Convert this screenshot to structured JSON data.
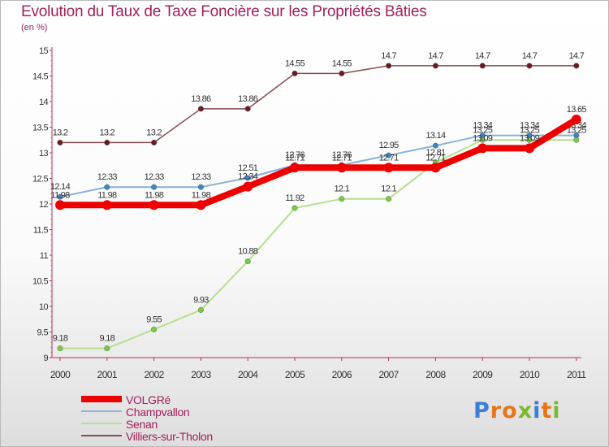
{
  "header": {
    "title": "Evolution du Taux de Taxe Foncière sur les Propriétés Bâties",
    "unit": "(en %)"
  },
  "logo": {
    "letters": [
      "P",
      "r",
      "o",
      "x",
      "i",
      "t",
      "i"
    ],
    "colors": [
      "#3a7fd5",
      "#e8751a",
      "#e8751a",
      "#7cb82f",
      "#3a7fd5",
      "#e8751a",
      "#7cb82f"
    ]
  },
  "chart_data": {
    "type": "line",
    "title": "Evolution du Taux de Taxe Foncière sur les Propriétés Bâties",
    "ylabel": "(en %)",
    "xlabel": "",
    "ylim": [
      9,
      15
    ],
    "yticks": [
      "9",
      "9.5",
      "10",
      "10.5",
      "11",
      "11.5",
      "12",
      "12.5",
      "13",
      "13.5",
      "14",
      "14.5",
      "15"
    ],
    "x": [
      "2000",
      "2001",
      "2002",
      "2003",
      "2004",
      "2005",
      "2006",
      "2007",
      "2008",
      "2009",
      "2010",
      "2011"
    ],
    "grid": false,
    "legend_position": "bottom-left",
    "series": [
      {
        "name": "Villiers-sur-Tholon",
        "color": "#6b1a22",
        "stroke": "#8a4a50",
        "width": 1.5,
        "values": [
          13.2,
          13.2,
          13.2,
          13.86,
          13.86,
          14.55,
          14.55,
          14.7,
          14.7,
          14.7,
          14.7,
          14.7
        ],
        "labels": [
          "13.2",
          "13.2",
          "13.2",
          "13.86",
          "13.86",
          "14.55",
          "14.55",
          "14.7",
          "14.7",
          "14.7",
          "14.7",
          "14.7"
        ]
      },
      {
        "name": "Senan",
        "color": "#7ac943",
        "stroke": "#b5e08e",
        "width": 2,
        "values": [
          9.18,
          9.18,
          9.55,
          9.93,
          10.88,
          11.92,
          12.1,
          12.1,
          12.81,
          13.25,
          13.25,
          13.25
        ],
        "labels": [
          "9.18",
          "9.18",
          "9.55",
          "9.93",
          "10.88",
          "11.92",
          "12.1",
          "12.1",
          "12.81",
          "13.25",
          "13.25",
          "13.25"
        ]
      },
      {
        "name": "Champvallon",
        "color": "#3d86c6",
        "stroke": "#86b3da",
        "width": 2,
        "values": [
          12.14,
          12.33,
          12.33,
          12.33,
          12.51,
          12.76,
          12.76,
          12.95,
          13.14,
          13.34,
          13.34,
          13.34
        ],
        "labels": [
          "12.14",
          "12.33",
          "12.33",
          "12.33",
          "12.51",
          "12.76",
          "12.76",
          "12.95",
          "13.14",
          "13.34",
          "13.34",
          "13.34"
        ]
      },
      {
        "name": "VOLGRé",
        "color": "#ee0000",
        "stroke": "#ee0000",
        "width": 8,
        "values": [
          11.98,
          11.98,
          11.98,
          11.98,
          12.34,
          12.71,
          12.71,
          12.71,
          12.71,
          13.09,
          13.09,
          13.65
        ],
        "labels": [
          "11.98",
          "11.98",
          "11.98",
          "11.98",
          "12.34",
          "12.71",
          "12.71",
          "12.71",
          "12.71",
          "13.09",
          "13.09",
          "13.65"
        ]
      }
    ],
    "legend": [
      "VOLGRé",
      "Champvallon",
      "Senan",
      "Villiers-sur-Tholon"
    ]
  }
}
